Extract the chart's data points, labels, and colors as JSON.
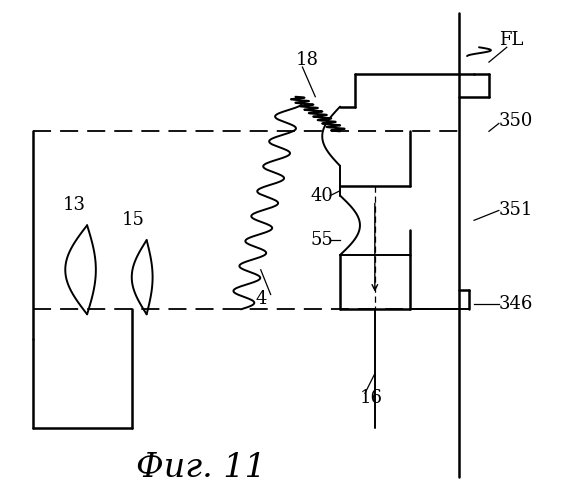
{
  "title": "Фиг. 11",
  "bg": "#ffffff",
  "fig_w": 5.81,
  "fig_h": 5.0,
  "dpi": 100
}
